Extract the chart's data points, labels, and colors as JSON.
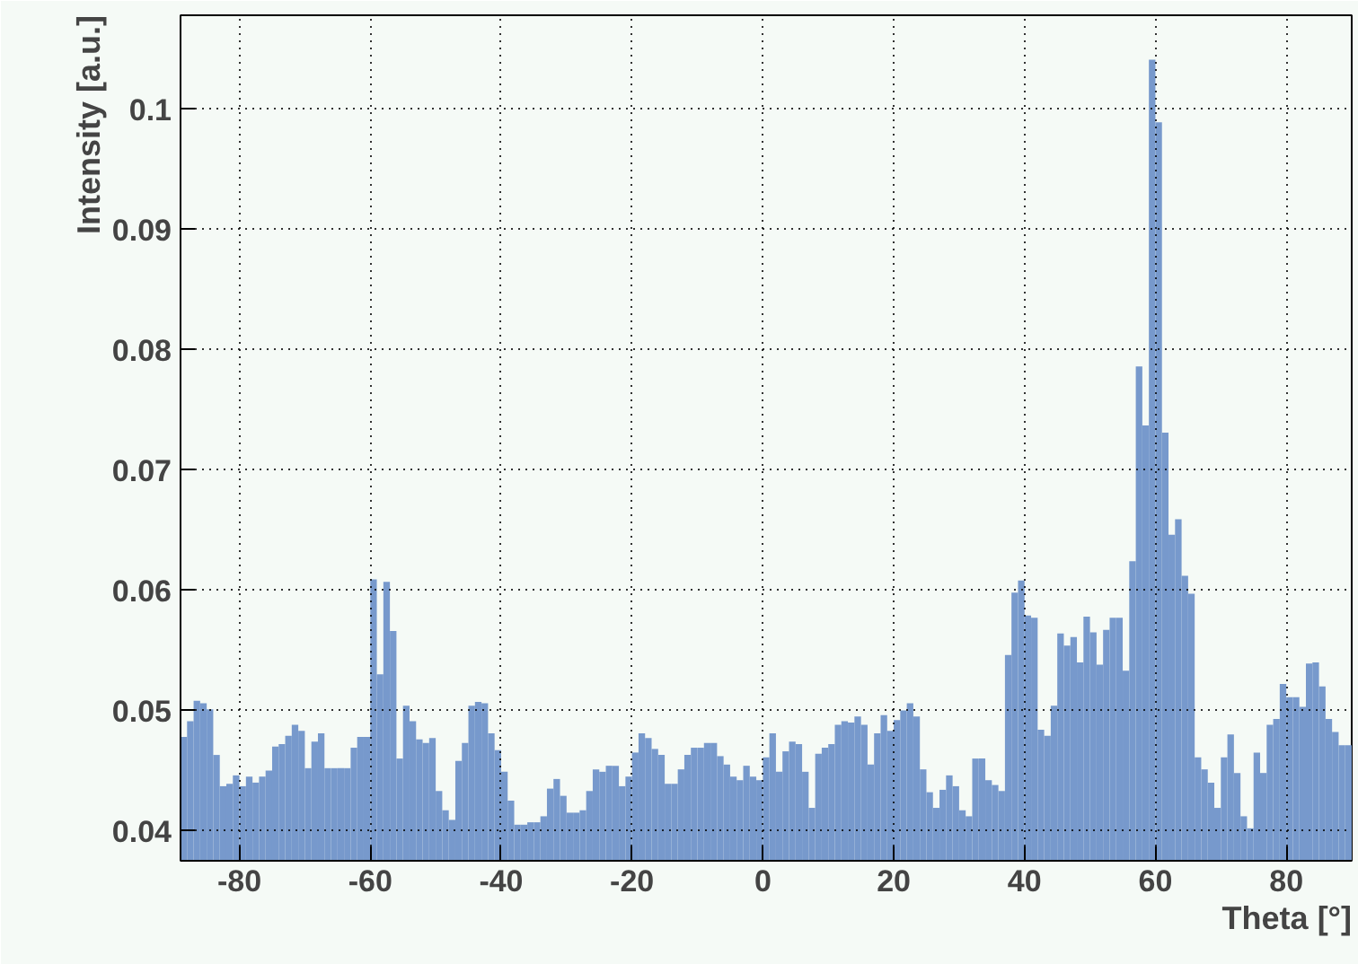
{
  "chart_data": {
    "type": "histogram",
    "xlabel": "Theta [°]",
    "ylabel": "Intensity [a.u.]",
    "bins": [
      -89,
      -88,
      -87,
      -86,
      -85,
      -84,
      -83,
      -82,
      -81,
      -80,
      -79,
      -78,
      -77,
      -76,
      -75,
      -74,
      -73,
      -72,
      -71,
      -70,
      -69,
      -68,
      -67,
      -66,
      -65,
      -64,
      -63,
      -62,
      -61,
      -60,
      -59,
      -58,
      -57,
      -56,
      -55,
      -54,
      -53,
      -52,
      -51,
      -50,
      -49,
      -48,
      -47,
      -46,
      -45,
      -44,
      -43,
      -42,
      -41,
      -40,
      -39,
      -38,
      -37,
      -36,
      -35,
      -34,
      -33,
      -32,
      -31,
      -30,
      -29,
      -28,
      -27,
      -26,
      -25,
      -24,
      -23,
      -22,
      -21,
      -20,
      -19,
      -18,
      -17,
      -16,
      -15,
      -14,
      -13,
      -12,
      -11,
      -10,
      -9,
      -8,
      -7,
      -6,
      -5,
      -4,
      -3,
      -2,
      -1,
      0,
      1,
      2,
      3,
      4,
      5,
      6,
      7,
      8,
      9,
      10,
      11,
      12,
      13,
      14,
      15,
      16,
      17,
      18,
      19,
      20,
      21,
      22,
      23,
      24,
      25,
      26,
      27,
      28,
      29,
      30,
      31,
      32,
      33,
      34,
      35,
      36,
      37,
      38,
      39,
      40,
      41,
      42,
      43,
      44,
      45,
      46,
      47,
      48,
      49,
      50,
      51,
      52,
      53,
      54,
      55,
      56,
      57,
      58,
      59,
      60,
      61,
      62,
      63,
      64,
      65,
      66,
      67,
      68,
      69,
      70,
      71,
      72,
      73,
      74,
      75,
      76,
      77,
      78,
      79,
      80,
      81,
      82,
      83,
      84,
      85,
      86,
      87,
      88,
      89,
      90
    ],
    "values": [
      0.0478,
      0.0491,
      0.0508,
      0.0506,
      0.0501,
      0.0463,
      0.0437,
      0.0439,
      0.0446,
      0.0437,
      0.0445,
      0.044,
      0.0445,
      0.045,
      0.047,
      0.0472,
      0.0479,
      0.0488,
      0.0483,
      0.0452,
      0.0474,
      0.0481,
      0.0452,
      0.0452,
      0.0452,
      0.0452,
      0.0469,
      0.0478,
      0.0478,
      0.0609,
      0.053,
      0.0607,
      0.0566,
      0.046,
      0.0504,
      0.0491,
      0.0476,
      0.0473,
      0.0477,
      0.0433,
      0.0417,
      0.0409,
      0.0458,
      0.0473,
      0.0504,
      0.0507,
      0.0506,
      0.0481,
      0.0467,
      0.0449,
      0.0425,
      0.0405,
      0.0405,
      0.0407,
      0.0407,
      0.0412,
      0.0435,
      0.0443,
      0.0429,
      0.0415,
      0.0415,
      0.0417,
      0.0433,
      0.0451,
      0.0449,
      0.0454,
      0.0454,
      0.0437,
      0.0445,
      0.0465,
      0.0481,
      0.0477,
      0.0468,
      0.0463,
      0.0439,
      0.0439,
      0.0451,
      0.0463,
      0.0469,
      0.0469,
      0.0473,
      0.0473,
      0.0462,
      0.0455,
      0.0445,
      0.0442,
      0.0454,
      0.0445,
      0.0442,
      0.0461,
      0.0481,
      0.0449,
      0.0466,
      0.0474,
      0.0472,
      0.0449,
      0.0419,
      0.0464,
      0.0469,
      0.0472,
      0.0488,
      0.0491,
      0.049,
      0.0495,
      0.0488,
      0.0455,
      0.0481,
      0.0496,
      0.0483,
      0.0492,
      0.05,
      0.0506,
      0.0495,
      0.0451,
      0.0432,
      0.0419,
      0.0434,
      0.0446,
      0.0437,
      0.0417,
      0.0412,
      0.046,
      0.046,
      0.0442,
      0.0438,
      0.0433,
      0.0546,
      0.0598,
      0.0608,
      0.0579,
      0.0577,
      0.0484,
      0.0479,
      0.0504,
      0.0564,
      0.0554,
      0.0561,
      0.054,
      0.0578,
      0.0565,
      0.0538,
      0.0567,
      0.0577,
      0.0577,
      0.0533,
      0.0624,
      0.0786,
      0.0737,
      0.1041,
      0.0989,
      0.0731,
      0.0646,
      0.0659,
      0.0612,
      0.0597,
      0.0461,
      0.0451,
      0.044,
      0.0419,
      0.0461,
      0.048,
      0.0448,
      0.0412,
      0.0402,
      0.0465,
      0.0448,
      0.0488,
      0.0493,
      0.0522,
      0.0511,
      0.0511,
      0.0503,
      0.0539,
      0.054,
      0.052,
      0.0493,
      0.0482,
      0.0471,
      0.0471
    ],
    "color": "#7799cc",
    "xlim": [
      -89,
      90
    ],
    "ylim": [
      0.0375,
      0.1078
    ],
    "xticks": [
      -80,
      -60,
      -40,
      -20,
      0,
      20,
      40,
      60,
      80
    ],
    "yticks": [
      0.04,
      0.05,
      0.06,
      0.07,
      0.08,
      0.09,
      0.1
    ],
    "grid": true
  }
}
